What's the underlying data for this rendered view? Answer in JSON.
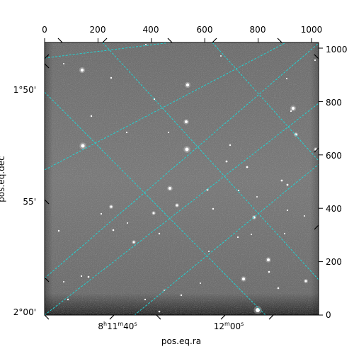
{
  "figure": {
    "type": "astronomical-image-wcs-overlay",
    "pixel_axis": {
      "x_ticks": [
        "0",
        "200",
        "400",
        "600",
        "800",
        "1000"
      ],
      "y_ticks": [
        "0",
        "200",
        "400",
        "600",
        "800",
        "1000"
      ],
      "range": [
        0,
        1030
      ]
    },
    "world_axes": {
      "ra_label": "pos.eq.ra",
      "dec_label": "pos.eq.dec",
      "ra_ticks": [
        {
          "h": "8",
          "m": "11",
          "s": "40"
        },
        {
          "m": "12",
          "s": "00"
        }
      ],
      "dec_ticks": [
        "1°50'",
        "55'",
        "2°00'"
      ]
    },
    "colors": {
      "grid": "#22d3d3",
      "image_mid": "#7a7a7a",
      "frame": "#000000"
    }
  }
}
